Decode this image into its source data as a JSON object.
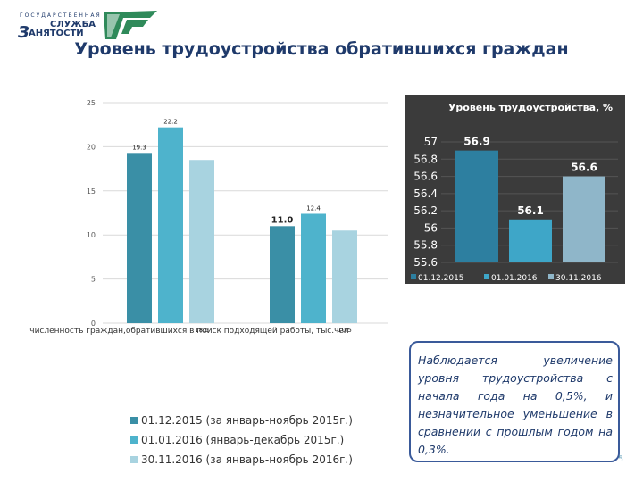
{
  "logo": {
    "line1": "ГОСУДАРСТВЕННАЯ",
    "line2": "СЛУЖБА",
    "line3": "АНЯТОСТИ",
    "big_letter": "З"
  },
  "title": "Уровень трудоустройства обратившихся граждан",
  "chart_data": [
    {
      "type": "bar",
      "categories": [
        "численность граждан,обратившихся в поиск подходящей работы, тыс.чел",
        ""
      ],
      "series": [
        {
          "name": "01.12.2015 (за январь-ноябрь 2015г.)",
          "values": [
            19.3,
            11.0
          ],
          "labels": [
            "19.3",
            "11.0"
          ],
          "color": "#3a8fa6"
        },
        {
          "name": "01.01.2016 (январь-декабрь 2015г.)",
          "values": [
            22.2,
            12.4
          ],
          "labels": [
            "22.2",
            "12.4"
          ],
          "color": "#4eb3cc"
        },
        {
          "name": "30.11.2016 (за январь-ноябрь 2016г.)",
          "values": [
            18.5,
            10.5
          ],
          "labels": [
            "18.5",
            "10.5"
          ],
          "color": "#a8d3e0"
        }
      ],
      "yticks": [
        "0",
        "5",
        "10",
        "15",
        "20",
        "25"
      ],
      "ylim": [
        0,
        25
      ],
      "legend": "bottom"
    },
    {
      "type": "bar",
      "title": "Уровень трудоустройства, %",
      "categories": [
        "01.12.2015",
        "01.01.2016",
        "30.11.2016"
      ],
      "values": [
        56.9,
        56.1,
        56.6
      ],
      "labels": [
        "56.9",
        "56.1",
        "56.6"
      ],
      "colors": [
        "#2d7fa0",
        "#3ea6c8",
        "#8fb6c9"
      ],
      "yticks": [
        "55.6",
        "55.8",
        "56",
        "56.2",
        "56.4",
        "56.6",
        "56.8",
        "57"
      ],
      "ylim": [
        55.6,
        57
      ],
      "legend": "bottom",
      "background": "#3b3b3b"
    }
  ],
  "note": "Наблюдается увеличение уровня трудоустройства с начала года на 0,5%, и незначительное уменьшение в сравнении с прошлым годом на 0,3%.",
  "page_number": "5"
}
